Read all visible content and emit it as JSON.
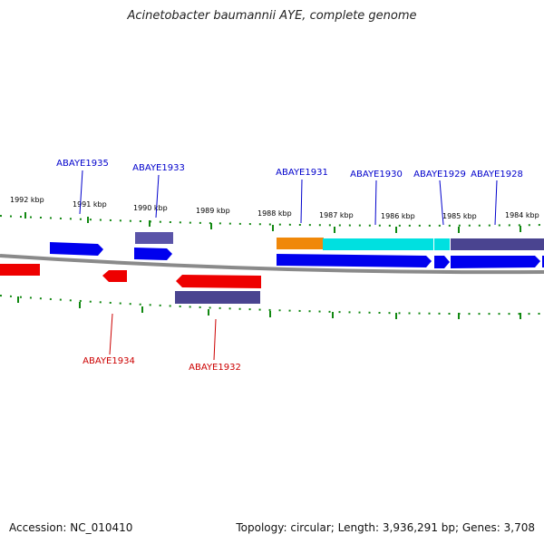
{
  "title": "Acinetobacter baumannii AYE, complete genome",
  "footer": {
    "accession": "Accession: NC_010410",
    "summary": "Topology: circular; Length: 3,936,291 bp; Genes: 3,708"
  },
  "ticks": [
    "1992 kbp",
    "1991 kbp",
    "1990 kbp",
    "1989 kbp",
    "1988 kbp",
    "1987 kbp",
    "1986 kbp",
    "1985 kbp",
    "1984 kbp"
  ],
  "gene_labels_top": [
    "ABAYE1935",
    "ABAYE1933",
    "ABAYE1931",
    "ABAYE1930",
    "ABAYE1929",
    "ABAYE1928"
  ],
  "gene_labels_bottom": [
    "ABAYE1934",
    "ABAYE1932"
  ],
  "colors": {
    "forward": "#0000ee",
    "reverse": "#ee0000",
    "feature_purple": "#4a4490",
    "feature_orange": "#f0880a",
    "feature_cyan": "#00e0e0",
    "backbone": "#888888",
    "tick": "#118811"
  }
}
